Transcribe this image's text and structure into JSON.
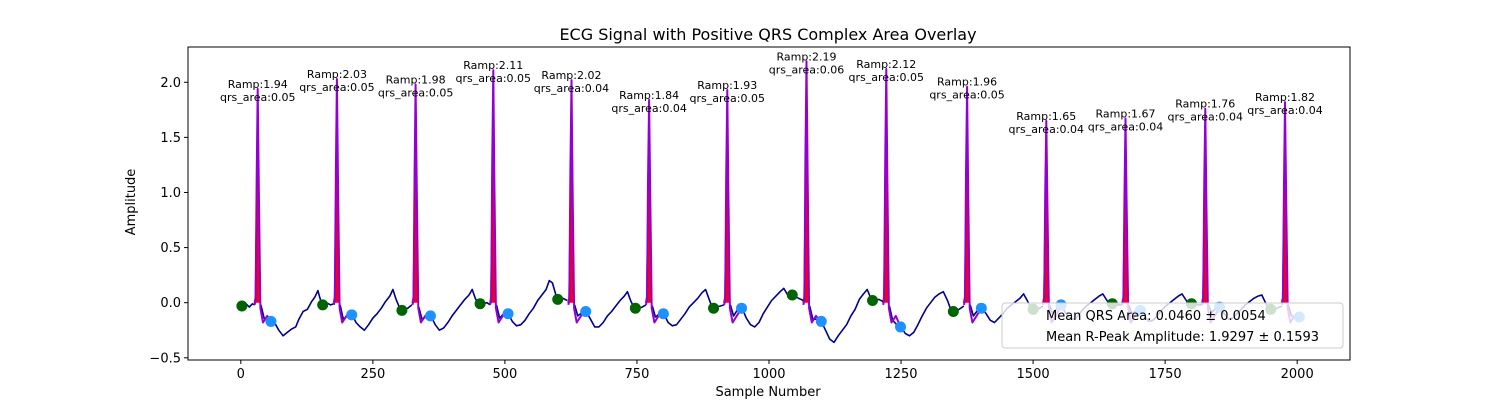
{
  "chart_data": {
    "type": "line",
    "title": "ECG Signal with Positive QRS Complex Area Overlay",
    "xlabel": "Sample Number",
    "ylabel": "Amplitude",
    "xlim": [
      -100,
      2100
    ],
    "ylim": [
      -0.52,
      2.32
    ],
    "x_ticks": [
      0,
      250,
      500,
      750,
      1000,
      1250,
      1500,
      1750,
      2000
    ],
    "y_ticks": [
      -0.5,
      0.0,
      0.5,
      1.0,
      1.5,
      2.0
    ],
    "grid": false,
    "colors": {
      "signal": "#00008b",
      "qrs_segment": "#9400d3",
      "qrs_area": "#ff0000",
      "q_s_points": "#1e90ff",
      "onset_points": "#006400"
    },
    "beats": [
      {
        "r_x": 32,
        "r_amp": 1.94,
        "onset_x": 2,
        "onset_y": -0.03,
        "s_x": 57,
        "s_y": -0.17,
        "label_r": "Ramp:1.94",
        "label_area": "qrs_area:0.05"
      },
      {
        "r_x": 182,
        "r_amp": 2.03,
        "onset_x": 155,
        "onset_y": -0.02,
        "s_x": 210,
        "s_y": -0.11,
        "label_r": "Ramp:2.03",
        "label_area": "qrs_area:0.05"
      },
      {
        "r_x": 331,
        "r_amp": 1.98,
        "onset_x": 305,
        "onset_y": -0.07,
        "s_x": 359,
        "s_y": -0.12,
        "label_r": "Ramp:1.98",
        "label_area": "qrs_area:0.05"
      },
      {
        "r_x": 478,
        "r_amp": 2.11,
        "onset_x": 453,
        "onset_y": -0.01,
        "s_x": 506,
        "s_y": -0.1,
        "label_r": "Ramp:2.11",
        "label_area": "qrs_area:0.05"
      },
      {
        "r_x": 626,
        "r_amp": 2.02,
        "onset_x": 600,
        "onset_y": 0.03,
        "s_x": 653,
        "s_y": -0.08,
        "label_r": "Ramp:2.02",
        "label_area": "qrs_area:0.04"
      },
      {
        "r_x": 773,
        "r_amp": 1.84,
        "onset_x": 747,
        "onset_y": -0.05,
        "s_x": 800,
        "s_y": -0.1,
        "label_r": "Ramp:1.84",
        "label_area": "qrs_area:0.04"
      },
      {
        "r_x": 921,
        "r_amp": 1.93,
        "onset_x": 895,
        "onset_y": -0.05,
        "s_x": 948,
        "s_y": -0.05,
        "label_r": "Ramp:1.93",
        "label_area": "qrs_area:0.05"
      },
      {
        "r_x": 1071,
        "r_amp": 2.19,
        "onset_x": 1044,
        "onset_y": 0.07,
        "s_x": 1099,
        "s_y": -0.17,
        "label_r": "Ramp:2.19",
        "label_area": "qrs_area:0.06"
      },
      {
        "r_x": 1222,
        "r_amp": 2.12,
        "onset_x": 1196,
        "onset_y": 0.02,
        "s_x": 1249,
        "s_y": -0.22,
        "label_r": "Ramp:2.12",
        "label_area": "qrs_area:0.05"
      },
      {
        "r_x": 1375,
        "r_amp": 1.96,
        "onset_x": 1349,
        "onset_y": -0.08,
        "s_x": 1402,
        "s_y": -0.05,
        "label_r": "Ramp:1.96",
        "label_area": "qrs_area:0.05"
      },
      {
        "r_x": 1525,
        "r_amp": 1.65,
        "onset_x": 1500,
        "onset_y": -0.06,
        "s_x": 1553,
        "s_y": -0.02,
        "label_r": "Ramp:1.65",
        "label_area": "qrs_area:0.04"
      },
      {
        "r_x": 1675,
        "r_amp": 1.67,
        "onset_x": 1650,
        "onset_y": -0.01,
        "s_x": 1703,
        "s_y": -0.07,
        "label_r": "Ramp:1.67",
        "label_area": "qrs_area:0.04"
      },
      {
        "r_x": 1826,
        "r_amp": 1.76,
        "onset_x": 1800,
        "onset_y": -0.01,
        "s_x": 1853,
        "s_y": -0.04,
        "label_r": "Ramp:1.76",
        "label_area": "qrs_area:0.04"
      },
      {
        "r_x": 1977,
        "r_amp": 1.82,
        "onset_x": 1950,
        "onset_y": -0.06,
        "s_x": 2004,
        "s_y": -0.13,
        "label_r": "Ramp:1.82",
        "label_area": "qrs_area:0.04"
      }
    ],
    "baseline_segments": [
      [
        [
          0,
          -0.02
        ],
        [
          8,
          0.0
        ],
        [
          16,
          -0.04
        ],
        [
          22,
          -0.01
        ],
        [
          26,
          -0.02
        ]
      ],
      [
        [
          38,
          -0.02
        ],
        [
          44,
          -0.14
        ],
        [
          52,
          -0.17
        ],
        [
          60,
          -0.17
        ],
        [
          66,
          -0.2
        ],
        [
          72,
          -0.25
        ],
        [
          80,
          -0.3
        ],
        [
          88,
          -0.27
        ],
        [
          96,
          -0.24
        ],
        [
          104,
          -0.22
        ],
        [
          110,
          -0.15
        ],
        [
          118,
          -0.08
        ],
        [
          126,
          -0.06
        ],
        [
          134,
          0.01
        ],
        [
          140,
          0.05
        ],
        [
          146,
          0.11
        ],
        [
          150,
          0.04
        ],
        [
          154,
          -0.02
        ],
        [
          162,
          0.0
        ],
        [
          170,
          -0.02
        ],
        [
          176,
          -0.01
        ]
      ],
      [
        [
          188,
          -0.02
        ],
        [
          194,
          -0.15
        ],
        [
          202,
          -0.12
        ],
        [
          210,
          -0.1
        ],
        [
          218,
          -0.18
        ],
        [
          226,
          -0.22
        ],
        [
          234,
          -0.25
        ],
        [
          242,
          -0.2
        ],
        [
          250,
          -0.14
        ],
        [
          258,
          -0.1
        ],
        [
          266,
          -0.05
        ],
        [
          274,
          0.01
        ],
        [
          282,
          0.06
        ],
        [
          288,
          0.12
        ],
        [
          294,
          0.03
        ],
        [
          300,
          -0.04
        ],
        [
          308,
          -0.06
        ],
        [
          316,
          -0.05
        ],
        [
          324,
          -0.02
        ]
      ],
      [
        [
          337,
          -0.04
        ],
        [
          343,
          -0.15
        ],
        [
          350,
          -0.13
        ],
        [
          360,
          -0.12
        ],
        [
          368,
          -0.2
        ],
        [
          376,
          -0.25
        ],
        [
          384,
          -0.23
        ],
        [
          392,
          -0.18
        ],
        [
          400,
          -0.12
        ],
        [
          408,
          -0.07
        ],
        [
          416,
          -0.02
        ],
        [
          424,
          0.03
        ],
        [
          432,
          0.07
        ],
        [
          438,
          0.12
        ],
        [
          444,
          0.04
        ],
        [
          450,
          -0.02
        ],
        [
          458,
          -0.01
        ],
        [
          466,
          0.0
        ],
        [
          472,
          -0.02
        ]
      ],
      [
        [
          484,
          -0.02
        ],
        [
          490,
          -0.14
        ],
        [
          498,
          -0.1
        ],
        [
          506,
          -0.1
        ],
        [
          514,
          -0.17
        ],
        [
          522,
          -0.21
        ],
        [
          530,
          -0.2
        ],
        [
          538,
          -0.16
        ],
        [
          546,
          -0.1
        ],
        [
          554,
          -0.05
        ],
        [
          562,
          0.02
        ],
        [
          570,
          0.07
        ],
        [
          578,
          0.12
        ],
        [
          584,
          0.2
        ],
        [
          590,
          0.18
        ],
        [
          596,
          0.08
        ],
        [
          602,
          0.03
        ],
        [
          610,
          0.04
        ],
        [
          618,
          0.02
        ]
      ],
      [
        [
          632,
          -0.02
        ],
        [
          638,
          -0.12
        ],
        [
          646,
          -0.09
        ],
        [
          654,
          -0.08
        ],
        [
          662,
          -0.15
        ],
        [
          670,
          -0.22
        ],
        [
          678,
          -0.22
        ],
        [
          686,
          -0.18
        ],
        [
          694,
          -0.12
        ],
        [
          702,
          -0.08
        ],
        [
          710,
          -0.03
        ],
        [
          718,
          0.02
        ],
        [
          726,
          0.06
        ],
        [
          732,
          0.1
        ],
        [
          738,
          0.02
        ],
        [
          744,
          -0.04
        ],
        [
          752,
          -0.05
        ],
        [
          760,
          -0.04
        ],
        [
          767,
          -0.02
        ]
      ],
      [
        [
          779,
          -0.03
        ],
        [
          785,
          -0.13
        ],
        [
          793,
          -0.1
        ],
        [
          801,
          -0.1
        ],
        [
          809,
          -0.18
        ],
        [
          817,
          -0.21
        ],
        [
          825,
          -0.2
        ],
        [
          833,
          -0.15
        ],
        [
          841,
          -0.1
        ],
        [
          849,
          -0.04
        ],
        [
          857,
          0.0
        ],
        [
          865,
          0.04
        ],
        [
          873,
          0.09
        ],
        [
          880,
          0.12
        ],
        [
          886,
          0.04
        ],
        [
          892,
          -0.04
        ],
        [
          900,
          -0.04
        ],
        [
          908,
          -0.03
        ],
        [
          915,
          -0.02
        ]
      ],
      [
        [
          927,
          -0.02
        ],
        [
          933,
          -0.12
        ],
        [
          941,
          -0.06
        ],
        [
          949,
          -0.05
        ],
        [
          957,
          -0.14
        ],
        [
          965,
          -0.2
        ],
        [
          973,
          -0.22
        ],
        [
          981,
          -0.18
        ],
        [
          989,
          -0.1
        ],
        [
          997,
          -0.04
        ],
        [
          1005,
          0.02
        ],
        [
          1013,
          0.06
        ],
        [
          1021,
          0.1
        ],
        [
          1028,
          0.13
        ],
        [
          1034,
          0.08
        ],
        [
          1040,
          0.05
        ],
        [
          1048,
          0.06
        ],
        [
          1056,
          0.04
        ],
        [
          1065,
          0.02
        ]
      ],
      [
        [
          1077,
          -0.03
        ],
        [
          1083,
          -0.15
        ],
        [
          1091,
          -0.15
        ],
        [
          1099,
          -0.17
        ],
        [
          1107,
          -0.25
        ],
        [
          1115,
          -0.33
        ],
        [
          1123,
          -0.36
        ],
        [
          1131,
          -0.3
        ],
        [
          1139,
          -0.25
        ],
        [
          1147,
          -0.2
        ],
        [
          1155,
          -0.12
        ],
        [
          1163,
          -0.06
        ],
        [
          1171,
          0.03
        ],
        [
          1179,
          0.08
        ],
        [
          1186,
          0.12
        ],
        [
          1192,
          0.05
        ],
        [
          1200,
          0.02
        ],
        [
          1208,
          0.03
        ],
        [
          1216,
          0.01
        ]
      ],
      [
        [
          1228,
          -0.03
        ],
        [
          1234,
          -0.16
        ],
        [
          1242,
          -0.2
        ],
        [
          1250,
          -0.22
        ],
        [
          1258,
          -0.28
        ],
        [
          1266,
          -0.3
        ],
        [
          1274,
          -0.27
        ],
        [
          1282,
          -0.2
        ],
        [
          1290,
          -0.12
        ],
        [
          1298,
          -0.05
        ],
        [
          1306,
          0.0
        ],
        [
          1314,
          0.05
        ],
        [
          1322,
          0.08
        ],
        [
          1330,
          0.1
        ],
        [
          1338,
          0.02
        ],
        [
          1344,
          -0.06
        ],
        [
          1352,
          -0.08
        ],
        [
          1360,
          -0.06
        ],
        [
          1369,
          -0.03
        ]
      ],
      [
        [
          1381,
          -0.02
        ],
        [
          1387,
          -0.12
        ],
        [
          1395,
          -0.07
        ],
        [
          1403,
          -0.05
        ],
        [
          1411,
          -0.1
        ],
        [
          1419,
          -0.16
        ],
        [
          1427,
          -0.18
        ],
        [
          1435,
          -0.14
        ],
        [
          1443,
          -0.1
        ],
        [
          1451,
          -0.05
        ],
        [
          1459,
          -0.02
        ],
        [
          1467,
          0.01
        ],
        [
          1475,
          0.04
        ],
        [
          1482,
          0.08
        ],
        [
          1490,
          0.01
        ],
        [
          1496,
          -0.05
        ],
        [
          1504,
          -0.06
        ],
        [
          1512,
          -0.05
        ],
        [
          1519,
          -0.03
        ]
      ],
      [
        [
          1531,
          -0.02
        ],
        [
          1537,
          -0.1
        ],
        [
          1545,
          -0.05
        ],
        [
          1553,
          -0.02
        ],
        [
          1561,
          -0.09
        ],
        [
          1569,
          -0.14
        ],
        [
          1577,
          -0.15
        ],
        [
          1585,
          -0.12
        ],
        [
          1593,
          -0.07
        ],
        [
          1601,
          -0.03
        ],
        [
          1609,
          0.0
        ],
        [
          1617,
          0.03
        ],
        [
          1625,
          0.06
        ],
        [
          1632,
          0.08
        ],
        [
          1640,
          0.02
        ],
        [
          1646,
          -0.02
        ],
        [
          1654,
          -0.01
        ],
        [
          1662,
          -0.02
        ],
        [
          1669,
          -0.02
        ]
      ],
      [
        [
          1681,
          -0.02
        ],
        [
          1687,
          -0.1
        ],
        [
          1695,
          -0.07
        ],
        [
          1703,
          -0.07
        ],
        [
          1711,
          -0.12
        ],
        [
          1719,
          -0.17
        ],
        [
          1727,
          -0.16
        ],
        [
          1735,
          -0.12
        ],
        [
          1743,
          -0.07
        ],
        [
          1751,
          -0.03
        ],
        [
          1759,
          0.0
        ],
        [
          1767,
          0.03
        ],
        [
          1775,
          0.06
        ],
        [
          1782,
          0.08
        ],
        [
          1790,
          0.02
        ],
        [
          1796,
          -0.02
        ],
        [
          1804,
          -0.01
        ],
        [
          1812,
          -0.02
        ],
        [
          1820,
          -0.02
        ]
      ],
      [
        [
          1832,
          -0.02
        ],
        [
          1838,
          -0.09
        ],
        [
          1846,
          -0.05
        ],
        [
          1854,
          -0.04
        ],
        [
          1862,
          -0.1
        ],
        [
          1870,
          -0.15
        ],
        [
          1878,
          -0.14
        ],
        [
          1886,
          -0.1
        ],
        [
          1894,
          -0.06
        ],
        [
          1902,
          -0.02
        ],
        [
          1910,
          0.01
        ],
        [
          1918,
          0.04
        ],
        [
          1926,
          0.06
        ],
        [
          1933,
          0.07
        ],
        [
          1940,
          0.0
        ],
        [
          1946,
          -0.06
        ],
        [
          1954,
          -0.06
        ],
        [
          1962,
          -0.05
        ],
        [
          1971,
          -0.03
        ]
      ],
      [
        [
          1983,
          -0.02
        ],
        [
          1989,
          -0.12
        ],
        [
          1997,
          -0.13
        ],
        [
          2004,
          -0.13
        ]
      ]
    ],
    "legend": {
      "placement": "lower right",
      "entries": [
        "Mean QRS Area: 0.0460 ± 0.0054",
        "Mean R-Peak Amplitude: 1.9297 ± 0.1593"
      ]
    }
  }
}
